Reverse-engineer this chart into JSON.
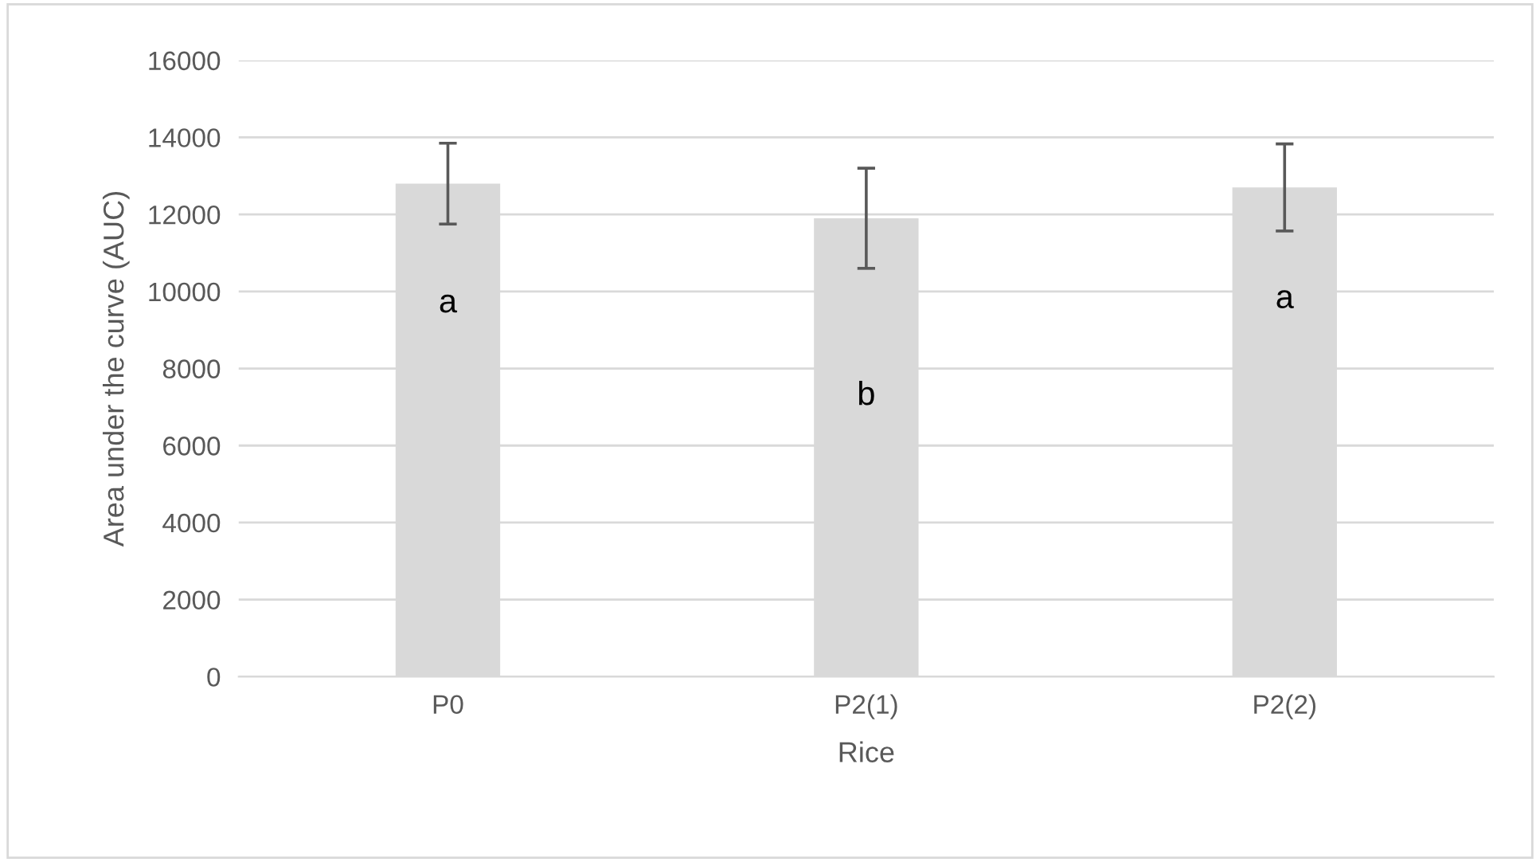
{
  "chart_data": {
    "type": "bar",
    "xlabel": "Rice",
    "ylabel": "Area under the curve (AUC)",
    "categories": [
      "P0",
      "P2(1)",
      "P2(2)"
    ],
    "values": [
      12800,
      11900,
      12700
    ],
    "errors": [
      1050,
      1300,
      1130
    ],
    "color": "#d9d9d9",
    "ylim": [
      0,
      16000
    ],
    "yticks": [
      0,
      2000,
      4000,
      6000,
      8000,
      10000,
      12000,
      14000,
      16000
    ],
    "grid": "y",
    "annotations": [
      "a",
      "b",
      "a"
    ]
  }
}
